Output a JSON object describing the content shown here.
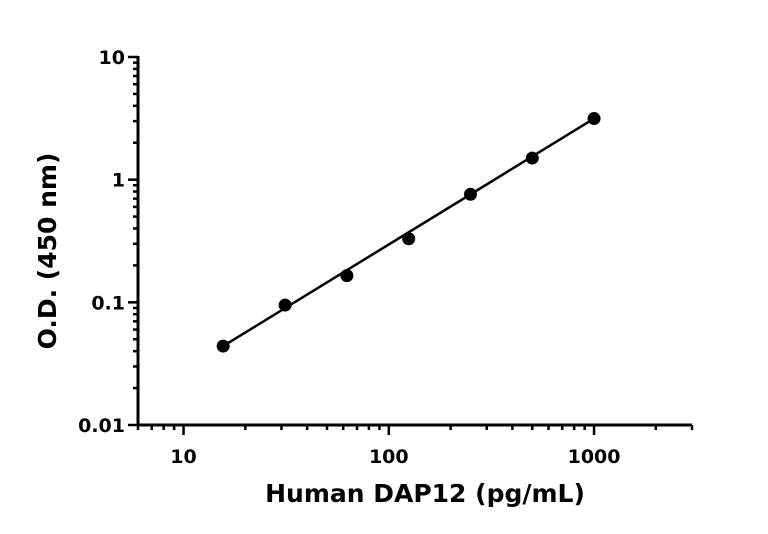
{
  "chart_data": {
    "type": "scatter",
    "title": "",
    "xlabel": "Human DAP12 (pg/mL)",
    "ylabel": "O.D. (450 nm)",
    "x_scale": "log",
    "y_scale": "log",
    "xlim": [
      6,
      3000
    ],
    "ylim": [
      0.01,
      10
    ],
    "x_ticks": [
      10,
      100,
      1000
    ],
    "x_tick_labels": [
      "10",
      "100",
      "1000"
    ],
    "y_ticks": [
      0.01,
      0.1,
      1,
      10
    ],
    "y_tick_labels": [
      "0.01",
      "0.1",
      "1",
      "10"
    ],
    "grid": false,
    "legend": "none",
    "series": [
      {
        "x": [
          15.6,
          31.25,
          62.5,
          125,
          250,
          500,
          1000
        ],
        "y": [
          0.044,
          0.095,
          0.165,
          0.33,
          0.76,
          1.5,
          3.15
        ]
      }
    ],
    "fit_line": {
      "x": [
        15.6,
        1000
      ],
      "y": [
        0.044,
        3.15
      ]
    },
    "colors": {
      "marks": "#000000"
    }
  }
}
